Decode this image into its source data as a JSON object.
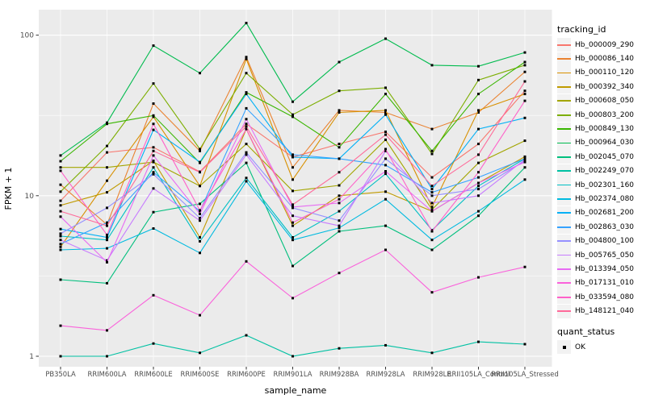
{
  "figure": {
    "background": "#FFFFFF",
    "panel_background": "#EBEBEB",
    "grid_color": "#FFFFFF",
    "tick_color": "#333333",
    "tick_label_color": "#4D4D4D",
    "point_color": "#000000"
  },
  "legend": {
    "series_title": "tracking_id",
    "shape_title": "quant_status",
    "shape_items": [
      {
        "label": "OK",
        "marker": "black-square"
      }
    ],
    "key_background": "#F2F2F2",
    "position": "right"
  },
  "chart_data": {
    "type": "line",
    "title": "",
    "xlabel": "sample_name",
    "ylabel": "FPKM + 1",
    "y_scale": "log10",
    "ylim": [
      0.85,
      145
    ],
    "y_major_ticks": [
      1,
      10,
      100
    ],
    "y_tick_labels": [
      "1",
      "10",
      "100"
    ],
    "y_minor_gridlines": [
      3.162,
      31.62
    ],
    "grid": true,
    "legend_position": "right",
    "point_marker": "filled-square-black",
    "categories": [
      "PB350LA",
      "RRIM600LA",
      "RRIM600LE",
      "RRIM600SE",
      "RRIM600PE",
      "RRIM901LA",
      "RRIM928BA",
      "RRIM928LA",
      "RRIM928LE",
      "RRII105LA_Control",
      "RRII105LA_Stressed"
    ],
    "series": [
      {
        "name": "Hb_000009_290",
        "color": "#F8766D",
        "values": [
          9.3,
          18.6,
          20.0,
          14.1,
          28.0,
          17.4,
          21.0,
          25.0,
          13.0,
          21.0,
          45.0
        ]
      },
      {
        "name": "Hb_000086_140",
        "color": "#EA8331",
        "values": [
          11.7,
          6.6,
          37.5,
          19.0,
          73.0,
          15.0,
          34.0,
          33.0,
          26.0,
          33.0,
          59.0
        ]
      },
      {
        "name": "Hb_000110_120",
        "color": "#D89000",
        "values": [
          4.8,
          12.4,
          31.0,
          11.5,
          71.0,
          12.6,
          33.0,
          34.0,
          8.5,
          34.0,
          43.0
        ]
      },
      {
        "name": "Hb_000392_340",
        "color": "#C09B00",
        "values": [
          8.7,
          10.5,
          16.5,
          5.5,
          26.0,
          6.5,
          10.0,
          10.6,
          8.0,
          12.0,
          17.5
        ]
      },
      {
        "name": "Hb_000608_050",
        "color": "#A3A500",
        "values": [
          15.0,
          15.0,
          16.2,
          11.5,
          21.0,
          10.7,
          11.6,
          22.3,
          8.2,
          16.0,
          22.0
        ]
      },
      {
        "name": "Hb_000803_200",
        "color": "#7CAE00",
        "values": [
          10.6,
          20.4,
          50.0,
          19.5,
          58.0,
          32.0,
          45.0,
          47.0,
          18.2,
          52.5,
          65.0
        ]
      },
      {
        "name": "Hb_000849_130",
        "color": "#39B600",
        "values": [
          16.4,
          28.0,
          31.6,
          16.0,
          44.0,
          31.0,
          20.0,
          43.0,
          19.0,
          43.0,
          68.0
        ]
      },
      {
        "name": "Hb_000964_030",
        "color": "#00BB4E",
        "values": [
          17.8,
          28.5,
          86.0,
          58.0,
          119.0,
          38.5,
          68.0,
          95.0,
          65.0,
          64.0,
          78.0
        ]
      },
      {
        "name": "Hb_002045_070",
        "color": "#00BF7D",
        "values": [
          3.0,
          2.85,
          7.9,
          8.9,
          16.0,
          3.65,
          6.0,
          6.5,
          4.6,
          7.5,
          15.0
        ]
      },
      {
        "name": "Hb_002249_070",
        "color": "#00C1A3",
        "values": [
          1.0,
          1.0,
          1.2,
          1.05,
          1.35,
          1.0,
          1.12,
          1.17,
          1.05,
          1.23,
          1.19
        ]
      },
      {
        "name": "Hb_002301_160",
        "color": "#00BFC4",
        "values": [
          5.6,
          5.3,
          15.0,
          5.2,
          12.9,
          5.5,
          8.0,
          13.7,
          6.1,
          11.5,
          17.0
        ]
      },
      {
        "name": "Hb_002374_080",
        "color": "#00BAE0",
        "values": [
          4.6,
          4.7,
          6.25,
          4.4,
          12.3,
          5.3,
          6.3,
          9.5,
          5.3,
          8.0,
          12.6
        ]
      },
      {
        "name": "Hb_002681_200",
        "color": "#00B0F6",
        "values": [
          6.2,
          5.5,
          25.7,
          16.2,
          43.0,
          17.4,
          17.0,
          32.0,
          11.0,
          26.0,
          30.5
        ]
      },
      {
        "name": "Hb_002863_030",
        "color": "#35A2FF",
        "values": [
          5.0,
          6.8,
          14.0,
          8.0,
          35.0,
          18.0,
          17.0,
          15.5,
          10.5,
          13.0,
          17.0
        ]
      },
      {
        "name": "Hb_004800_100",
        "color": "#9590FF",
        "values": [
          5.8,
          8.4,
          13.6,
          7.25,
          18.6,
          8.4,
          7.0,
          17.0,
          10.0,
          11.0,
          16.5
        ]
      },
      {
        "name": "Hb_005765_050",
        "color": "#C77CFF",
        "values": [
          5.3,
          3.95,
          11.1,
          7.0,
          18.0,
          7.5,
          6.5,
          19.0,
          9.0,
          10.0,
          16.8
        ]
      },
      {
        "name": "Hb_013394_050",
        "color": "#E76BF3",
        "values": [
          7.4,
          3.85,
          17.8,
          7.7,
          30.0,
          8.5,
          9.0,
          14.2,
          8.0,
          12.0,
          16.2
        ]
      },
      {
        "name": "Hb_017131_010",
        "color": "#FA62DB",
        "values": [
          1.55,
          1.45,
          2.4,
          1.8,
          3.9,
          2.3,
          3.3,
          4.6,
          2.5,
          3.1,
          3.6
        ]
      },
      {
        "name": "Hb_033594_080",
        "color": "#FF61C9",
        "values": [
          14.3,
          5.7,
          28.0,
          8.1,
          26.0,
          6.8,
          9.5,
          19.5,
          6.0,
          14.0,
          39.0
        ]
      },
      {
        "name": "Hb_148121_040",
        "color": "#FF6A9A",
        "values": [
          8.0,
          6.5,
          19.0,
          14.0,
          27.0,
          8.8,
          14.0,
          24.0,
          11.5,
          18.0,
          51.5
        ]
      }
    ]
  }
}
